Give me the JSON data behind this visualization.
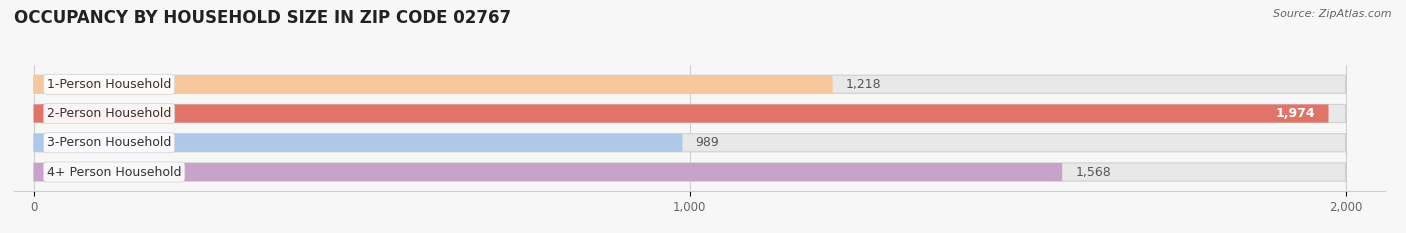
{
  "title": "OCCUPANCY BY HOUSEHOLD SIZE IN ZIP CODE 02767",
  "source_text": "Source: ZipAtlas.com",
  "categories": [
    "1-Person Household",
    "2-Person Household",
    "3-Person Household",
    "4+ Person Household"
  ],
  "values": [
    1218,
    1974,
    989,
    1568
  ],
  "bar_colors": [
    "#f7c89e",
    "#e07468",
    "#afc8ea",
    "#c8a2c8"
  ],
  "value_labels": [
    "1,218",
    "1,974",
    "989",
    "1,568"
  ],
  "value_inside": [
    false,
    true,
    false,
    false
  ],
  "xlim": [
    -30,
    2060
  ],
  "xmax": 2000,
  "xticks": [
    0,
    1000,
    2000
  ],
  "xtick_labels": [
    "0",
    "1,000",
    "2,000"
  ],
  "background_color": "#f7f7f7",
  "bar_bg_color": "#e8e8e8",
  "bar_height": 0.62,
  "bar_gap": 0.38,
  "figsize": [
    14.06,
    2.33
  ],
  "title_fontsize": 12,
  "label_fontsize": 9,
  "value_fontsize": 9,
  "source_fontsize": 8
}
